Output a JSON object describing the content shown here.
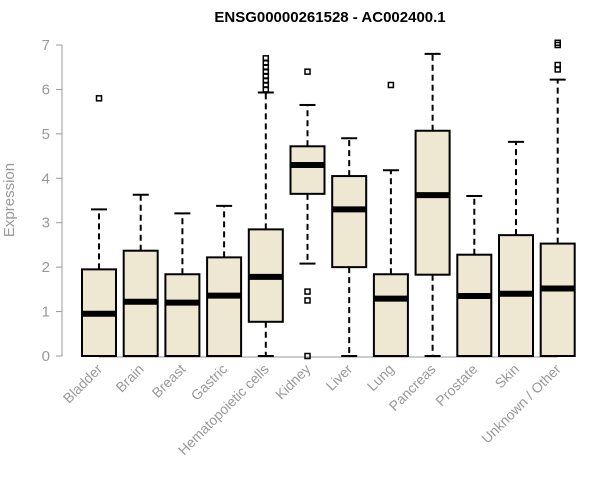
{
  "chart_data": {
    "type": "box",
    "title": "ENSG00000261528 - AC002400.1",
    "xlabel": "",
    "ylabel": "Expression",
    "ylim": [
      0,
      7
    ],
    "yticks": [
      "0",
      "1",
      "2",
      "3",
      "4",
      "5",
      "6",
      "7"
    ],
    "box_fill": "#EEE8D2",
    "box_stroke": "#000000",
    "axis_color": "#999999",
    "grid": false,
    "categories": [
      "Bladder",
      "Brain",
      "Breast",
      "Gastric",
      "Hematopoietic cells",
      "Kidney",
      "Liver",
      "Lung",
      "Pancreas",
      "Prostate",
      "Skin",
      "Unknown / Other"
    ],
    "boxes": [
      {
        "min": 0,
        "q1": 0,
        "median": 0.95,
        "q3": 1.95,
        "max": 3.3,
        "outliers": [
          5.8
        ]
      },
      {
        "min": 0,
        "q1": 0,
        "median": 1.22,
        "q3": 2.37,
        "max": 3.63,
        "outliers": []
      },
      {
        "min": 0,
        "q1": 0,
        "median": 1.2,
        "q3": 1.84,
        "max": 3.21,
        "outliers": []
      },
      {
        "min": 0,
        "q1": 0,
        "median": 1.36,
        "q3": 2.22,
        "max": 3.38,
        "outliers": []
      },
      {
        "min": 0,
        "q1": 0.77,
        "median": 1.78,
        "q3": 2.85,
        "max": 5.93,
        "outliers": [
          6.0,
          6.1,
          6.2,
          6.3,
          6.4,
          6.5,
          6.6,
          6.7
        ]
      },
      {
        "min": 2.08,
        "q1": 3.65,
        "median": 4.3,
        "q3": 4.72,
        "max": 5.65,
        "outliers": [
          6.4,
          1.45,
          1.25,
          0
        ]
      },
      {
        "min": 0,
        "q1": 2.0,
        "median": 3.3,
        "q3": 4.05,
        "max": 4.9,
        "outliers": []
      },
      {
        "min": 0,
        "q1": 0,
        "median": 1.29,
        "q3": 1.84,
        "max": 4.18,
        "outliers": [
          6.1
        ]
      },
      {
        "min": 0,
        "q1": 1.83,
        "median": 3.62,
        "q3": 5.07,
        "max": 6.8,
        "outliers": []
      },
      {
        "min": 0,
        "q1": 0,
        "median": 1.35,
        "q3": 2.28,
        "max": 3.6,
        "outliers": []
      },
      {
        "min": 0,
        "q1": 0,
        "median": 1.4,
        "q3": 2.72,
        "max": 4.82,
        "outliers": []
      },
      {
        "min": 0,
        "q1": 0,
        "median": 1.52,
        "q3": 2.53,
        "max": 6.22,
        "outliers": [
          6.45,
          6.55,
          7.0,
          7.05
        ]
      }
    ]
  }
}
